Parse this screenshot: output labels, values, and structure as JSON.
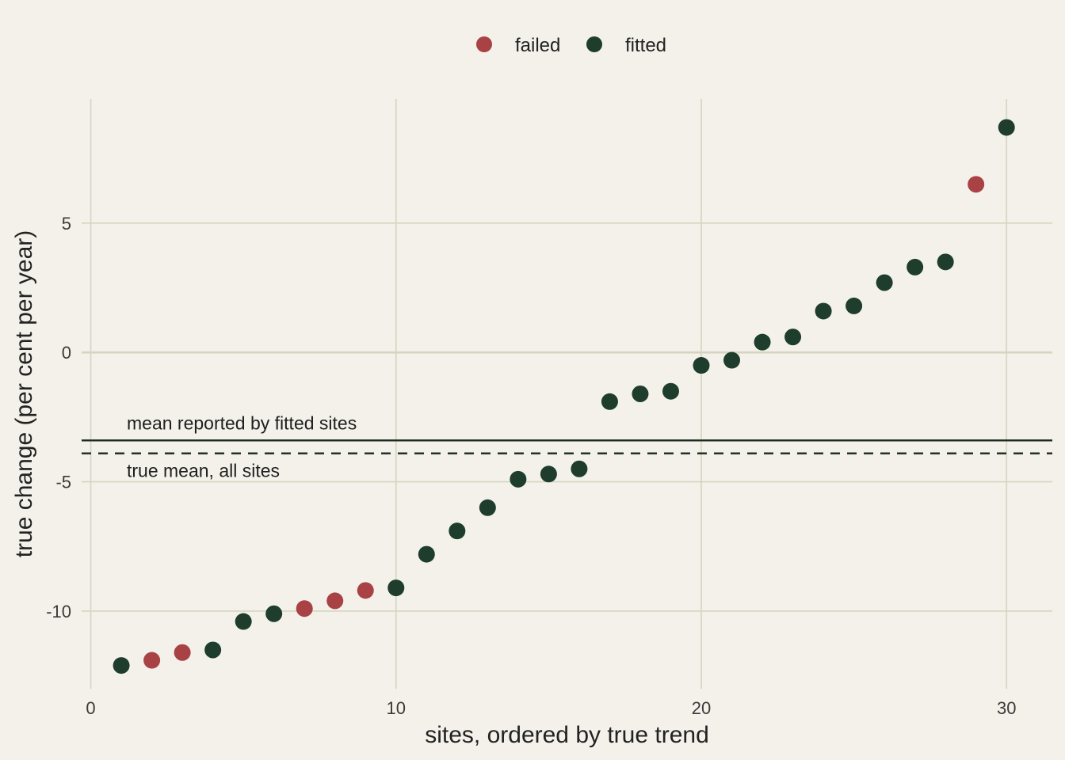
{
  "chart_data": {
    "type": "scatter",
    "title": "",
    "xlabel": "sites, ordered by true trend",
    "ylabel": "true change (per cent per year)",
    "xlim": [
      -0.3,
      31.5
    ],
    "ylim": [
      -13.0,
      9.8
    ],
    "xticks": [
      0,
      10,
      20,
      30
    ],
    "yticks": [
      -10,
      -5,
      0,
      5
    ],
    "grid": true,
    "legend": "top-center",
    "colors": {
      "failed": "#a84244",
      "fitted": "#1e3d2c",
      "grid": "#d4d5c0",
      "background": "#f3f1ea",
      "line": "#1a2a20"
    },
    "series": [
      {
        "name": "failed",
        "color": "#a84244",
        "points": [
          [
            2,
            -11.9
          ],
          [
            3,
            -11.6
          ],
          [
            7,
            -9.9
          ],
          [
            8,
            -9.6
          ],
          [
            9,
            -9.2
          ],
          [
            29,
            6.5
          ]
        ]
      },
      {
        "name": "fitted",
        "color": "#1e3d2c",
        "points": [
          [
            1,
            -12.1
          ],
          [
            4,
            -11.5
          ],
          [
            5,
            -10.4
          ],
          [
            6,
            -10.1
          ],
          [
            10,
            -9.1
          ],
          [
            11,
            -7.8
          ],
          [
            12,
            -6.9
          ],
          [
            13,
            -6.0
          ],
          [
            14,
            -4.9
          ],
          [
            15,
            -4.7
          ],
          [
            16,
            -4.5
          ],
          [
            17,
            -1.9
          ],
          [
            18,
            -1.6
          ],
          [
            19,
            -1.5
          ],
          [
            20,
            -0.5
          ],
          [
            21,
            -0.3
          ],
          [
            22,
            0.4
          ],
          [
            23,
            0.6
          ],
          [
            24,
            1.6
          ],
          [
            25,
            1.8
          ],
          [
            26,
            2.7
          ],
          [
            27,
            3.3
          ],
          [
            28,
            3.5
          ],
          [
            30,
            8.7
          ]
        ]
      }
    ],
    "reference_lines": [
      {
        "label": "mean reported by fitted sites",
        "y": -3.4,
        "style": "solid"
      },
      {
        "label": "true mean, all sites",
        "y": -3.9,
        "style": "dashed"
      }
    ]
  }
}
